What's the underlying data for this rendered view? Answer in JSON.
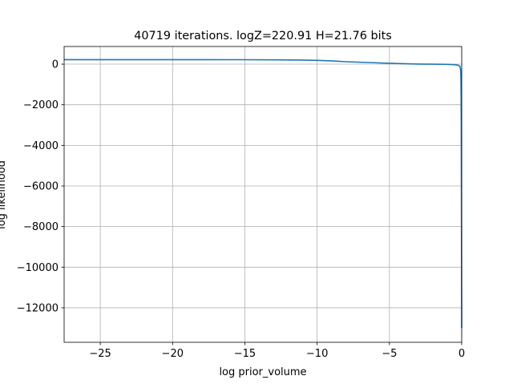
{
  "chart_data": {
    "type": "line",
    "title": "40719 iterations. logZ=220.91 H=21.76 bits",
    "xlabel": "log prior_volume",
    "ylabel": "log likelihood",
    "xlim": [
      -27.5,
      0
    ],
    "ylim": [
      -13700,
      870
    ],
    "xticks": [
      -25,
      -20,
      -15,
      -10,
      -5,
      0
    ],
    "xtick_labels": [
      "−25",
      "−20",
      "−15",
      "−10",
      "−5",
      "0"
    ],
    "yticks": [
      0,
      -2000,
      -4000,
      -6000,
      -8000,
      -10000,
      -12000
    ],
    "ytick_labels": [
      "0",
      "−2000",
      "−4000",
      "−6000",
      "−8000",
      "−10000",
      "−12000"
    ],
    "grid": true,
    "legend": "none",
    "series": [
      {
        "color": "#1f77b4",
        "x": [
          -27.5,
          -25,
          -20,
          -15,
          -12.5,
          -11,
          -10,
          -9,
          -8,
          -7,
          -6,
          -5,
          -4,
          -3,
          -2,
          -1,
          -0.5,
          -0.25,
          -0.12,
          -0.08,
          -0.06,
          -0.05,
          -0.04,
          -0.03,
          -0.02,
          -0.01,
          0
        ],
        "y": [
          222,
          222,
          221,
          219,
          212,
          200,
          185,
          160,
          120,
          95,
          70,
          45,
          25,
          5,
          0,
          -10,
          -25,
          -50,
          -110,
          -250,
          -500,
          -900,
          -1600,
          -3000,
          -6000,
          -10000,
          -13000
        ]
      }
    ]
  }
}
